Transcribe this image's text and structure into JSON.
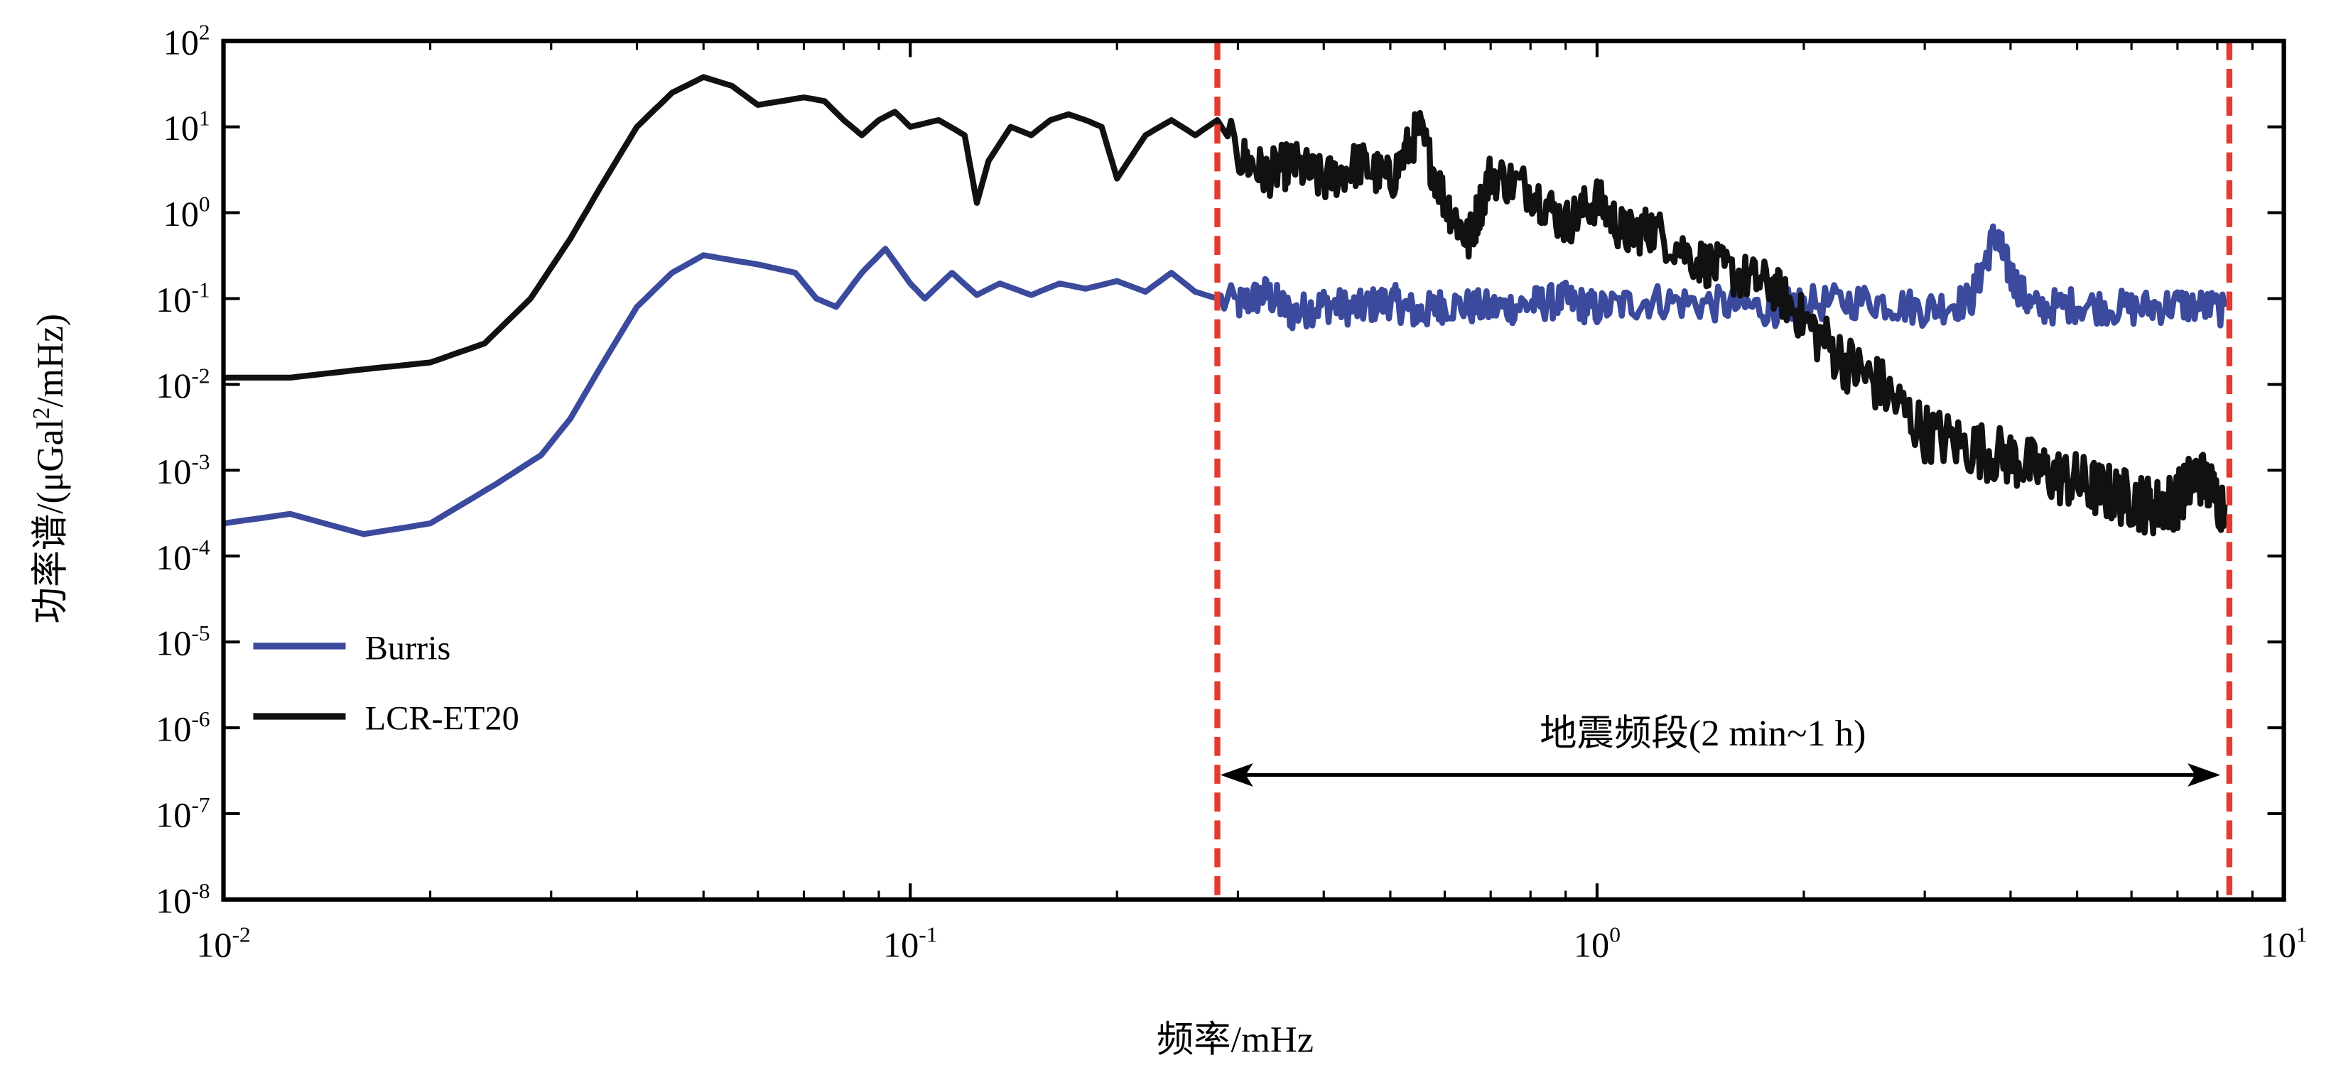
{
  "chart_data": {
    "type": "line",
    "title": "",
    "xlabel": "频率/mHz",
    "ylabel_parts": [
      "功率谱/(μGal",
      "2",
      "/mHz)"
    ],
    "x_scale": "log",
    "y_scale": "log",
    "xlim": [
      0.01,
      10
    ],
    "ylim": [
      1e-08,
      100
    ],
    "grid": false,
    "legend_position": "lower-left",
    "x_ticks": [
      {
        "base": "10",
        "exp": "-2",
        "value": 0.01
      },
      {
        "base": "10",
        "exp": "-1",
        "value": 0.1
      },
      {
        "base": "10",
        "exp": "0",
        "value": 1
      },
      {
        "base": "10",
        "exp": "1",
        "value": 10
      }
    ],
    "y_ticks": [
      {
        "base": "10",
        "exp": "2",
        "value": 100
      },
      {
        "base": "10",
        "exp": "1",
        "value": 10
      },
      {
        "base": "10",
        "exp": "0",
        "value": 1
      },
      {
        "base": "10",
        "exp": "-1",
        "value": 0.1
      },
      {
        "base": "10",
        "exp": "-2",
        "value": 0.01
      },
      {
        "base": "10",
        "exp": "-3",
        "value": 0.001
      },
      {
        "base": "10",
        "exp": "-4",
        "value": 0.0001
      },
      {
        "base": "10",
        "exp": "-5",
        "value": 1e-05
      },
      {
        "base": "10",
        "exp": "-6",
        "value": 1e-06
      },
      {
        "base": "10",
        "exp": "-7",
        "value": 1e-07
      },
      {
        "base": "10",
        "exp": "-8",
        "value": 1e-08
      }
    ],
    "series": [
      {
        "name": "Burris",
        "color": "#3b4a9c",
        "x": [
          0.01,
          0.0125,
          0.016,
          0.02,
          0.025,
          0.029,
          0.032,
          0.036,
          0.04,
          0.045,
          0.05,
          0.055,
          0.06,
          0.068,
          0.073,
          0.078,
          0.085,
          0.092,
          0.1,
          0.105,
          0.115,
          0.125,
          0.135,
          0.15,
          0.165,
          0.18,
          0.2,
          0.22,
          0.24,
          0.26,
          0.28,
          0.3,
          0.33,
          0.36,
          0.4,
          0.45,
          0.5,
          0.55,
          0.6,
          0.7,
          0.8,
          0.9,
          1.0,
          1.2,
          1.5,
          1.8,
          2.0,
          2.5,
          3.0,
          3.5,
          3.8,
          4.0,
          4.3,
          5.0,
          6.0,
          7.0,
          8.2
        ],
        "y": [
          0.00024,
          0.00031,
          0.00018,
          0.00024,
          0.0007,
          0.0015,
          0.004,
          0.02,
          0.08,
          0.2,
          0.32,
          0.28,
          0.25,
          0.2,
          0.1,
          0.08,
          0.2,
          0.38,
          0.15,
          0.1,
          0.2,
          0.11,
          0.15,
          0.11,
          0.15,
          0.13,
          0.16,
          0.12,
          0.2,
          0.12,
          0.1,
          0.09,
          0.12,
          0.07,
          0.09,
          0.08,
          0.1,
          0.07,
          0.09,
          0.08,
          0.09,
          0.1,
          0.08,
          0.1,
          0.09,
          0.08,
          0.09,
          0.1,
          0.08,
          0.1,
          0.6,
          0.2,
          0.08,
          0.09,
          0.08,
          0.09,
          0.08
        ]
      },
      {
        "name": "LCR-ET20",
        "color": "#111111",
        "x": [
          0.01,
          0.0125,
          0.016,
          0.02,
          0.024,
          0.028,
          0.032,
          0.036,
          0.04,
          0.045,
          0.05,
          0.055,
          0.06,
          0.065,
          0.07,
          0.075,
          0.08,
          0.085,
          0.09,
          0.095,
          0.1,
          0.11,
          0.12,
          0.125,
          0.13,
          0.14,
          0.15,
          0.16,
          0.17,
          0.18,
          0.19,
          0.2,
          0.22,
          0.24,
          0.26,
          0.28,
          0.3,
          0.33,
          0.36,
          0.4,
          0.45,
          0.5,
          0.55,
          0.6,
          0.65,
          0.7,
          0.8,
          0.9,
          1.0,
          1.1,
          1.2,
          1.4,
          1.6,
          1.8,
          2.0,
          2.3,
          2.6,
          3.0,
          3.5,
          4.0,
          4.5,
          5.0,
          5.5,
          6.0,
          6.5,
          7.0,
          7.5,
          8.2
        ],
        "y": [
          0.012,
          0.012,
          0.015,
          0.018,
          0.03,
          0.1,
          0.5,
          2.5,
          10,
          25,
          38,
          30,
          18,
          20,
          22,
          20,
          12,
          8,
          12,
          15,
          10,
          12,
          8,
          1.3,
          4,
          10,
          8,
          12,
          14,
          12,
          10,
          2.5,
          8,
          12,
          8,
          12,
          5,
          3,
          4,
          2.5,
          4,
          2.5,
          10,
          1.5,
          0.5,
          3,
          2,
          0.8,
          1.5,
          0.6,
          0.7,
          0.3,
          0.2,
          0.15,
          0.06,
          0.02,
          0.01,
          0.003,
          0.002,
          0.0015,
          0.001,
          0.0008,
          0.0006,
          0.0005,
          0.0004,
          0.0005,
          0.001,
          0.0004
        ]
      }
    ],
    "annotations": {
      "band_label": "地震频段(2 min~1 h)",
      "band_start": 0.28,
      "band_end": 8.33,
      "line_color": "#e53a2f"
    }
  }
}
